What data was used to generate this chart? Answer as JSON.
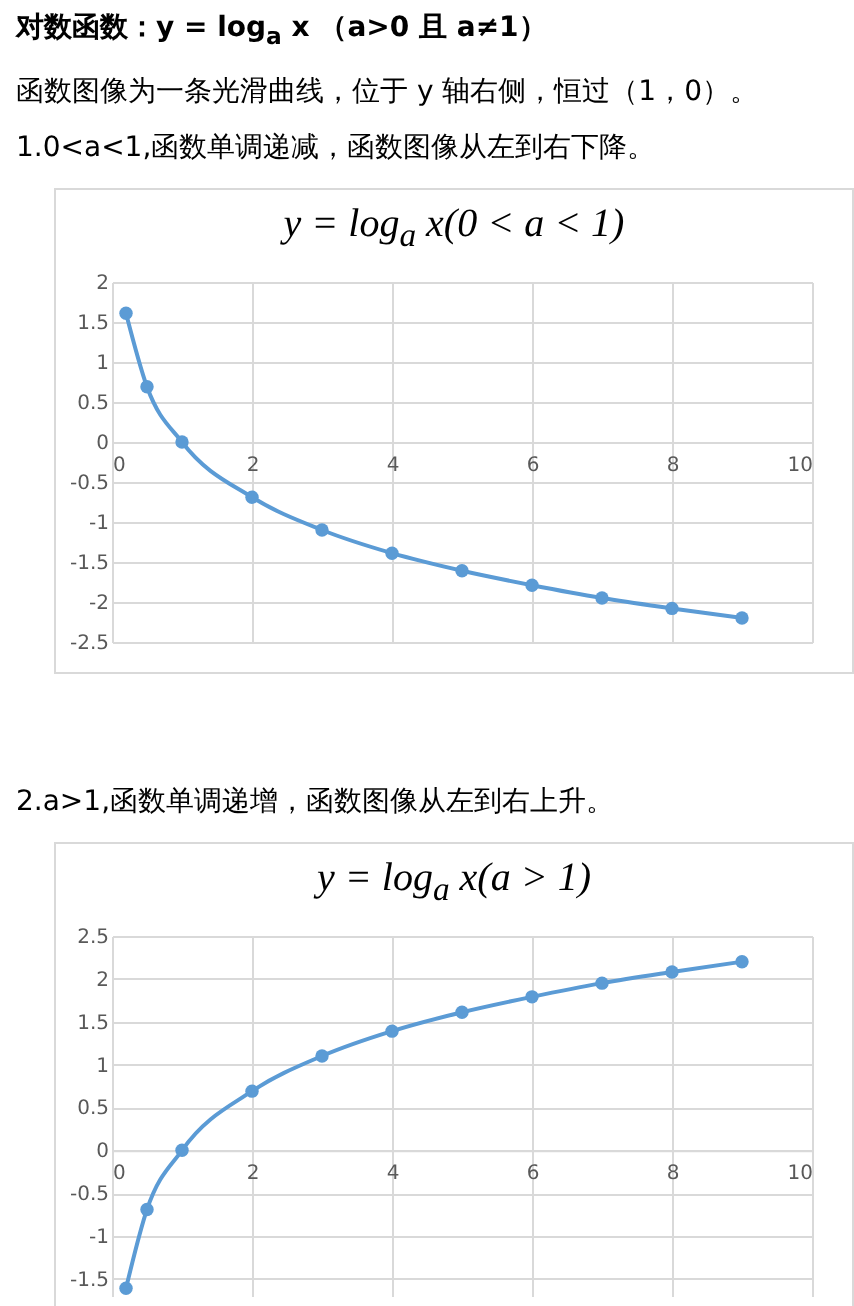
{
  "chart_data": [
    {
      "type": "line",
      "title": "y = log$_{a}$ x(0 < a < 1)",
      "annotations": [
        "对数函数：y = log$_{a}$ x （a>0 且 a≠1）",
        "函数图像为一条光滑曲线，位于 y 轴右侧，恒过（1，0）。",
        "1.0<a<1,函数单调递减，函数图像从左到右下降。"
      ],
      "x": [
        0.2,
        0.5,
        1,
        2,
        3,
        4,
        5,
        6,
        7,
        8,
        9
      ],
      "series": [
        {
          "color": "#5b9bd5",
          "values": [
            1.61,
            0.69,
            0,
            -0.69,
            -1.1,
            -1.39,
            -1.61,
            -1.79,
            -1.95,
            -2.08,
            -2.2
          ]
        }
      ],
      "xlim": [
        0,
        10
      ],
      "xticks": [
        0,
        2,
        4,
        6,
        8,
        10
      ],
      "ylim": [
        -2.5,
        2
      ],
      "yticks": [
        -2.5,
        -2,
        -1.5,
        -1,
        -0.5,
        0,
        0.5,
        1,
        1.5,
        2
      ],
      "grid": true,
      "marker": "circle",
      "legend": false
    },
    {
      "type": "line",
      "title": "y = log$_{a}$ x(a > 1)",
      "annotations": [
        "2.a>1,函数单调递增，函数图像从左到右上升。"
      ],
      "x": [
        0.2,
        0.5,
        1,
        2,
        3,
        4,
        5,
        6,
        7,
        8,
        9
      ],
      "series": [
        {
          "color": "#5b9bd5",
          "values": [
            -1.61,
            -0.69,
            0,
            0.69,
            1.1,
            1.39,
            1.61,
            1.79,
            1.95,
            2.08,
            2.2
          ]
        }
      ],
      "xlim": [
        0,
        10
      ],
      "xticks": [
        0,
        2,
        4,
        6,
        8,
        10
      ],
      "ylim": [
        -1.7,
        2.5
      ],
      "yticks": [
        -1.5,
        -1,
        -0.5,
        0,
        0.5,
        1,
        1.5,
        2,
        2.5
      ],
      "grid": true,
      "marker": "circle",
      "legend": false
    }
  ]
}
